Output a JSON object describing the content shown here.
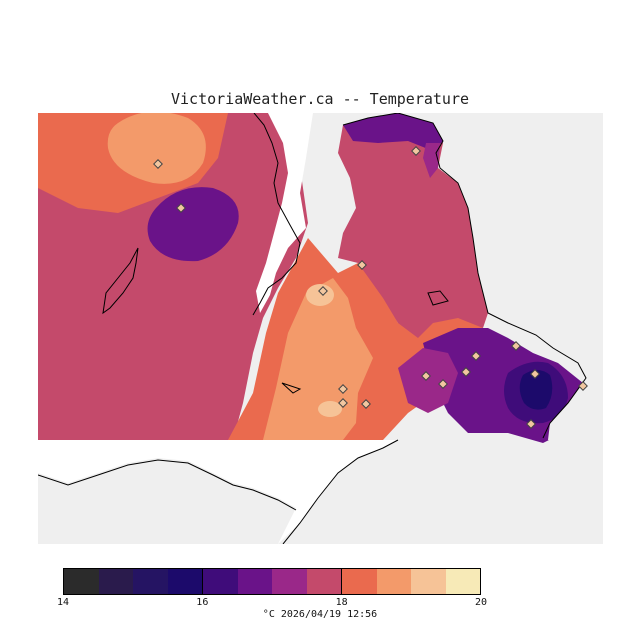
{
  "title": "VictoriaWeather.ca -- Temperature",
  "colors": {
    "background": "#efefef",
    "coast": "#000000",
    "water": "#ffffff",
    "station": "#f2c7a0"
  },
  "legend": {
    "bins": [
      "#2b2b2b",
      "#2a1b4c",
      "#251463",
      "#1c0a6b",
      "#3f0c7a",
      "#6a1389",
      "#9a2889",
      "#c44a6b",
      "#ea6a4e",
      "#f39a6a",
      "#f6c397",
      "#f7eab7"
    ],
    "ticks": [
      "14",
      "16",
      "18",
      "20"
    ],
    "unit": "°C",
    "timestamp": "2026/04/19 12:56",
    "caption": "°C  2026/04/19 12:56"
  }
}
